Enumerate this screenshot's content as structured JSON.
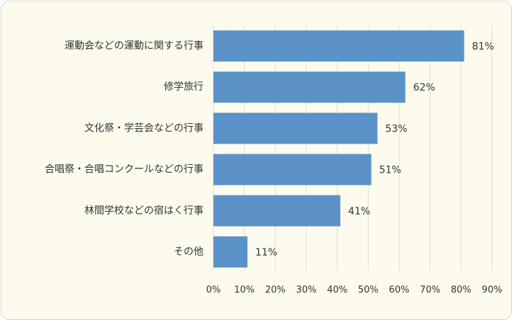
{
  "colors": {
    "background": "#fcfbee",
    "bar": "#5b93c8",
    "grid": "#dcdcd0",
    "text": "#333333"
  },
  "chart_data": {
    "type": "bar",
    "orientation": "horizontal",
    "categories": [
      "運動会などの運動に関する行事",
      "修学旅行",
      "文化祭・学芸会などの行事",
      "合唱祭・合唱コンクールなどの行事",
      "林間学校などの宿はく行事",
      "その他"
    ],
    "values": [
      81,
      62,
      53,
      51,
      41,
      11
    ],
    "data_labels": [
      "81%",
      "62%",
      "53%",
      "51%",
      "41%",
      "11%"
    ],
    "xlim": [
      0,
      90
    ],
    "xticks": [
      0,
      10,
      20,
      30,
      40,
      50,
      60,
      70,
      80,
      90
    ],
    "xtick_labels": [
      "0%",
      "10%",
      "20%",
      "30%",
      "40%",
      "50%",
      "60%",
      "70%",
      "80%",
      "90%"
    ],
    "grid": true,
    "legend": "none"
  }
}
